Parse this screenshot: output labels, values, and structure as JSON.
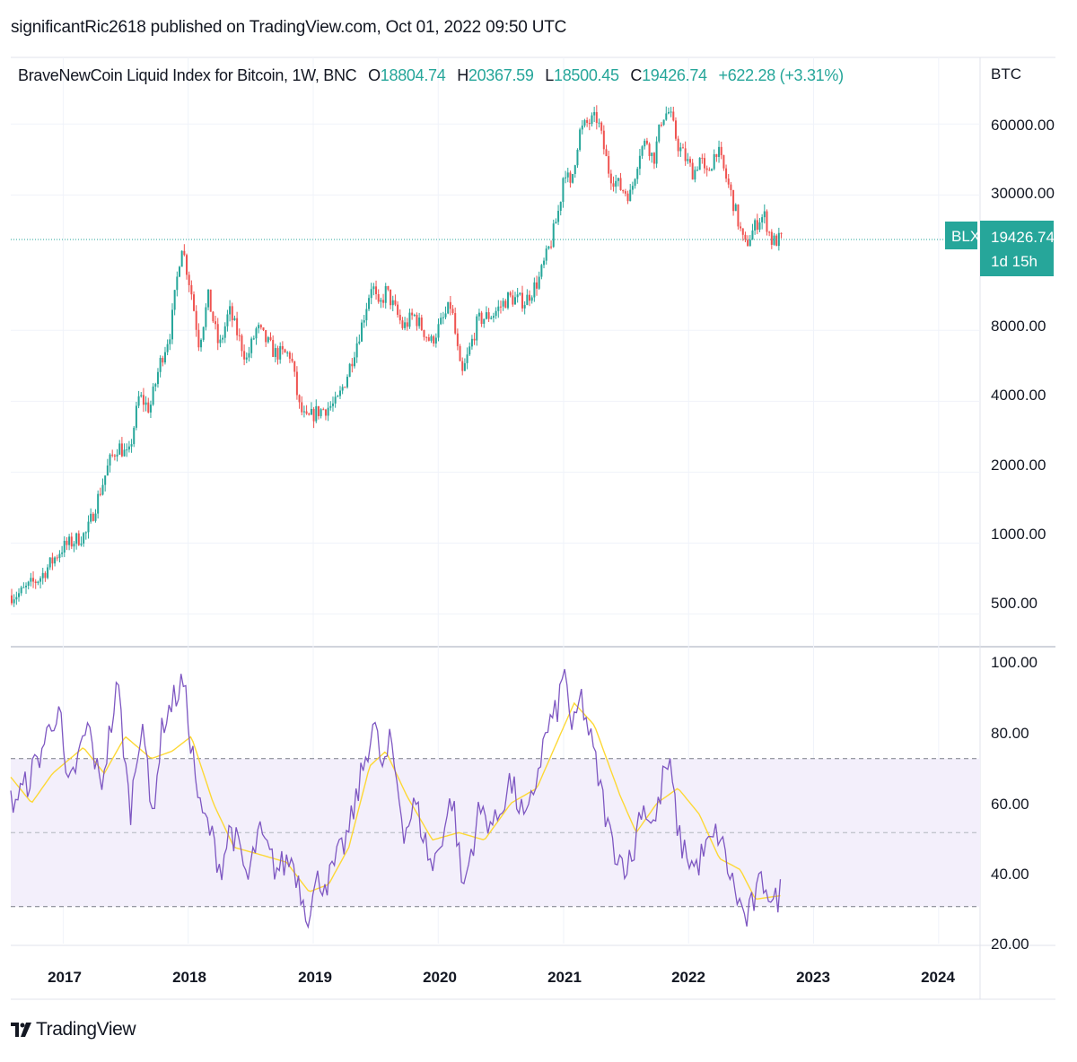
{
  "header": {
    "published_by": "significantRic2618 published on TradingView.com, Oct 01, 2022 09:50 UTC"
  },
  "legend": {
    "symbol_title": "BraveNewCoin Liquid Index for Bitcoin, 1W, BNC",
    "open_key": "O",
    "open_value": "18804.74",
    "high_key": "H",
    "high_value": "20367.59",
    "low_key": "L",
    "low_value": "18500.45",
    "close_key": "C",
    "close_value": "19426.74",
    "change": "+622.28 (+3.31%)"
  },
  "price_axis": {
    "currency": "BTC",
    "tick_labels": [
      "60000.00",
      "30000.00",
      "8000.00",
      "4000.00",
      "2000.00",
      "1000.00",
      "500.00"
    ]
  },
  "last_price": {
    "symbol_badge": "BLX",
    "price": "19426.74",
    "countdown": "1d 15h"
  },
  "rsi_axis": {
    "tick_labels": [
      "100.00",
      "80.00",
      "60.00",
      "40.00",
      "20.00"
    ],
    "band_upper": 70,
    "band_middle": 50,
    "band_lower": 30
  },
  "time_axis": {
    "labels": [
      "2017",
      "2018",
      "2019",
      "2020",
      "2021",
      "2022",
      "2023",
      "2024"
    ]
  },
  "footer": {
    "brand": "TradingView"
  },
  "colors": {
    "up": "#26a69a",
    "down": "#ef5350",
    "rsi": "#7e57c2",
    "rsi_ma": "#fdd835",
    "band_fill": "#f3effb"
  },
  "chart_data": [
    {
      "type": "candlestick",
      "scale": "log",
      "x_range": [
        "2016-08-01",
        "2024-05-01"
      ],
      "y_range": [
        370,
        115000
      ],
      "ylabel": "BTC",
      "anchors": [
        [
          "2016-08-01",
          600
        ],
        [
          "2016-09-01",
          610
        ],
        [
          "2016-11-01",
          720
        ],
        [
          "2017-01-01",
          950
        ],
        [
          "2017-03-15",
          1100
        ],
        [
          "2017-05-20",
          2200
        ],
        [
          "2017-06-15",
          2600
        ],
        [
          "2017-07-15",
          2300
        ],
        [
          "2017-08-15",
          4200
        ],
        [
          "2017-09-15",
          3700
        ],
        [
          "2017-10-15",
          5800
        ],
        [
          "2017-11-15",
          8000
        ],
        [
          "2017-12-17",
          18800
        ],
        [
          "2018-01-15",
          11500
        ],
        [
          "2018-02-06",
          7000
        ],
        [
          "2018-03-05",
          11000
        ],
        [
          "2018-04-06",
          6700
        ],
        [
          "2018-05-05",
          9700
        ],
        [
          "2018-06-25",
          6000
        ],
        [
          "2018-07-25",
          8200
        ],
        [
          "2018-09-15",
          6400
        ],
        [
          "2018-11-01",
          6300
        ],
        [
          "2018-11-25",
          3800
        ],
        [
          "2018-12-15",
          3300
        ],
        [
          "2019-01-15",
          3600
        ],
        [
          "2019-03-15",
          3900
        ],
        [
          "2019-04-15",
          5200
        ],
        [
          "2019-05-25",
          8200
        ],
        [
          "2019-06-26",
          12800
        ],
        [
          "2019-07-15",
          9800
        ],
        [
          "2019-08-06",
          11800
        ],
        [
          "2019-09-25",
          8200
        ],
        [
          "2019-10-26",
          9300
        ],
        [
          "2019-12-15",
          7100
        ],
        [
          "2020-02-12",
          10300
        ],
        [
          "2020-03-13",
          5000
        ],
        [
          "2020-04-30",
          8800
        ],
        [
          "2020-06-15",
          9400
        ],
        [
          "2020-07-28",
          11000
        ],
        [
          "2020-09-15",
          10600
        ],
        [
          "2020-10-25",
          13100
        ],
        [
          "2020-11-30",
          19000
        ],
        [
          "2020-12-25",
          27000
        ],
        [
          "2021-01-08",
          40000
        ],
        [
          "2021-01-25",
          32000
        ],
        [
          "2021-02-20",
          55000
        ],
        [
          "2021-03-13",
          60000
        ],
        [
          "2021-04-14",
          63500
        ],
        [
          "2021-05-19",
          37000
        ],
        [
          "2021-06-22",
          32000
        ],
        [
          "2021-07-20",
          30000
        ],
        [
          "2021-08-15",
          46000
        ],
        [
          "2021-09-06",
          51000
        ],
        [
          "2021-09-25",
          42000
        ],
        [
          "2021-10-20",
          65000
        ],
        [
          "2021-11-10",
          67500
        ],
        [
          "2021-12-05",
          49000
        ],
        [
          "2022-01-20",
          37000
        ],
        [
          "2022-02-10",
          44000
        ],
        [
          "2022-02-24",
          35000
        ],
        [
          "2022-03-29",
          47500
        ],
        [
          "2022-05-10",
          30000
        ],
        [
          "2022-06-18",
          18000
        ],
        [
          "2022-07-30",
          23800
        ],
        [
          "2022-08-15",
          24300
        ],
        [
          "2022-09-06",
          19000
        ],
        [
          "2022-09-30",
          19426.74
        ]
      ]
    },
    {
      "type": "line",
      "y_range": [
        20,
        100
      ],
      "series": [
        {
          "values": [
            [
              "2016-08-01",
              58
            ],
            [
              "2016-09-10",
              62
            ],
            [
              "2016-10-20",
              70
            ],
            [
              "2016-12-20",
              85
            ],
            [
              "2017-01-12",
              60
            ],
            [
              "2017-03-15",
              79
            ],
            [
              "2017-04-20",
              62
            ],
            [
              "2017-06-10",
              90
            ],
            [
              "2017-07-15",
              55
            ],
            [
              "2017-08-20",
              83
            ],
            [
              "2017-09-15",
              53
            ],
            [
              "2017-10-20",
              80
            ],
            [
              "2017-12-17",
              91
            ],
            [
              "2018-02-06",
              55
            ],
            [
              "2018-03-01",
              52
            ],
            [
              "2018-04-06",
              40
            ],
            [
              "2018-05-05",
              52
            ],
            [
              "2018-06-25",
              37
            ],
            [
              "2018-07-25",
              50
            ],
            [
              "2018-09-15",
              40
            ],
            [
              "2018-11-01",
              43
            ],
            [
              "2018-12-15",
              28
            ],
            [
              "2019-01-15",
              37
            ],
            [
              "2019-02-15",
              37
            ],
            [
              "2019-04-15",
              50
            ],
            [
              "2019-06-26",
              80
            ],
            [
              "2019-07-25",
              66
            ],
            [
              "2019-08-15",
              75
            ],
            [
              "2019-09-25",
              50
            ],
            [
              "2019-10-26",
              58
            ],
            [
              "2019-12-15",
              40
            ],
            [
              "2020-02-12",
              60
            ],
            [
              "2020-03-13",
              34
            ],
            [
              "2020-04-30",
              56
            ],
            [
              "2020-06-15",
              52
            ],
            [
              "2020-07-28",
              64
            ],
            [
              "2020-09-15",
              52
            ],
            [
              "2020-10-25",
              70
            ],
            [
              "2020-11-15",
              78
            ],
            [
              "2020-12-10",
              82
            ],
            [
              "2021-01-08",
              95
            ],
            [
              "2021-01-25",
              75
            ],
            [
              "2021-02-20",
              87
            ],
            [
              "2021-03-28",
              72
            ],
            [
              "2021-05-19",
              48
            ],
            [
              "2021-06-22",
              42
            ],
            [
              "2021-07-20",
              42
            ],
            [
              "2021-08-15",
              58
            ],
            [
              "2021-09-25",
              52
            ],
            [
              "2021-10-25",
              68
            ],
            [
              "2021-11-10",
              66
            ],
            [
              "2021-12-05",
              48
            ],
            [
              "2022-01-20",
              40
            ],
            [
              "2022-02-10",
              44
            ],
            [
              "2022-03-29",
              50
            ],
            [
              "2022-05-10",
              36
            ],
            [
              "2022-06-18",
              26
            ],
            [
              "2022-07-30",
              36
            ],
            [
              "2022-08-15",
              37
            ],
            [
              "2022-09-06",
              30
            ],
            [
              "2022-09-30",
              35
            ]
          ]
        },
        {
          "values": [
            [
              "2016-08-01",
              65
            ],
            [
              "2016-10-01",
              58
            ],
            [
              "2016-12-01",
              66
            ],
            [
              "2017-03-01",
              73
            ],
            [
              "2017-05-01",
              66
            ],
            [
              "2017-07-01",
              76
            ],
            [
              "2017-09-15",
              70
            ],
            [
              "2017-11-15",
              72
            ],
            [
              "2018-01-10",
              76
            ],
            [
              "2018-03-15",
              58
            ],
            [
              "2018-05-15",
              46
            ],
            [
              "2018-08-01",
              44
            ],
            [
              "2018-10-15",
              42
            ],
            [
              "2018-12-20",
              34
            ],
            [
              "2019-02-15",
              36
            ],
            [
              "2019-04-15",
              46
            ],
            [
              "2019-06-15",
              68
            ],
            [
              "2019-08-01",
              72
            ],
            [
              "2019-10-01",
              60
            ],
            [
              "2019-12-15",
              48
            ],
            [
              "2020-03-01",
              50
            ],
            [
              "2020-05-15",
              48
            ],
            [
              "2020-08-01",
              58
            ],
            [
              "2020-10-15",
              62
            ],
            [
              "2020-12-20",
              76
            ],
            [
              "2021-02-01",
              85
            ],
            [
              "2021-04-01",
              79
            ],
            [
              "2021-06-15",
              60
            ],
            [
              "2021-08-01",
              50
            ],
            [
              "2021-10-01",
              58
            ],
            [
              "2021-12-01",
              62
            ],
            [
              "2022-02-01",
              55
            ],
            [
              "2022-04-01",
              43
            ],
            [
              "2022-06-01",
              40
            ],
            [
              "2022-07-15",
              32
            ],
            [
              "2022-09-30",
              33
            ]
          ]
        }
      ]
    }
  ]
}
